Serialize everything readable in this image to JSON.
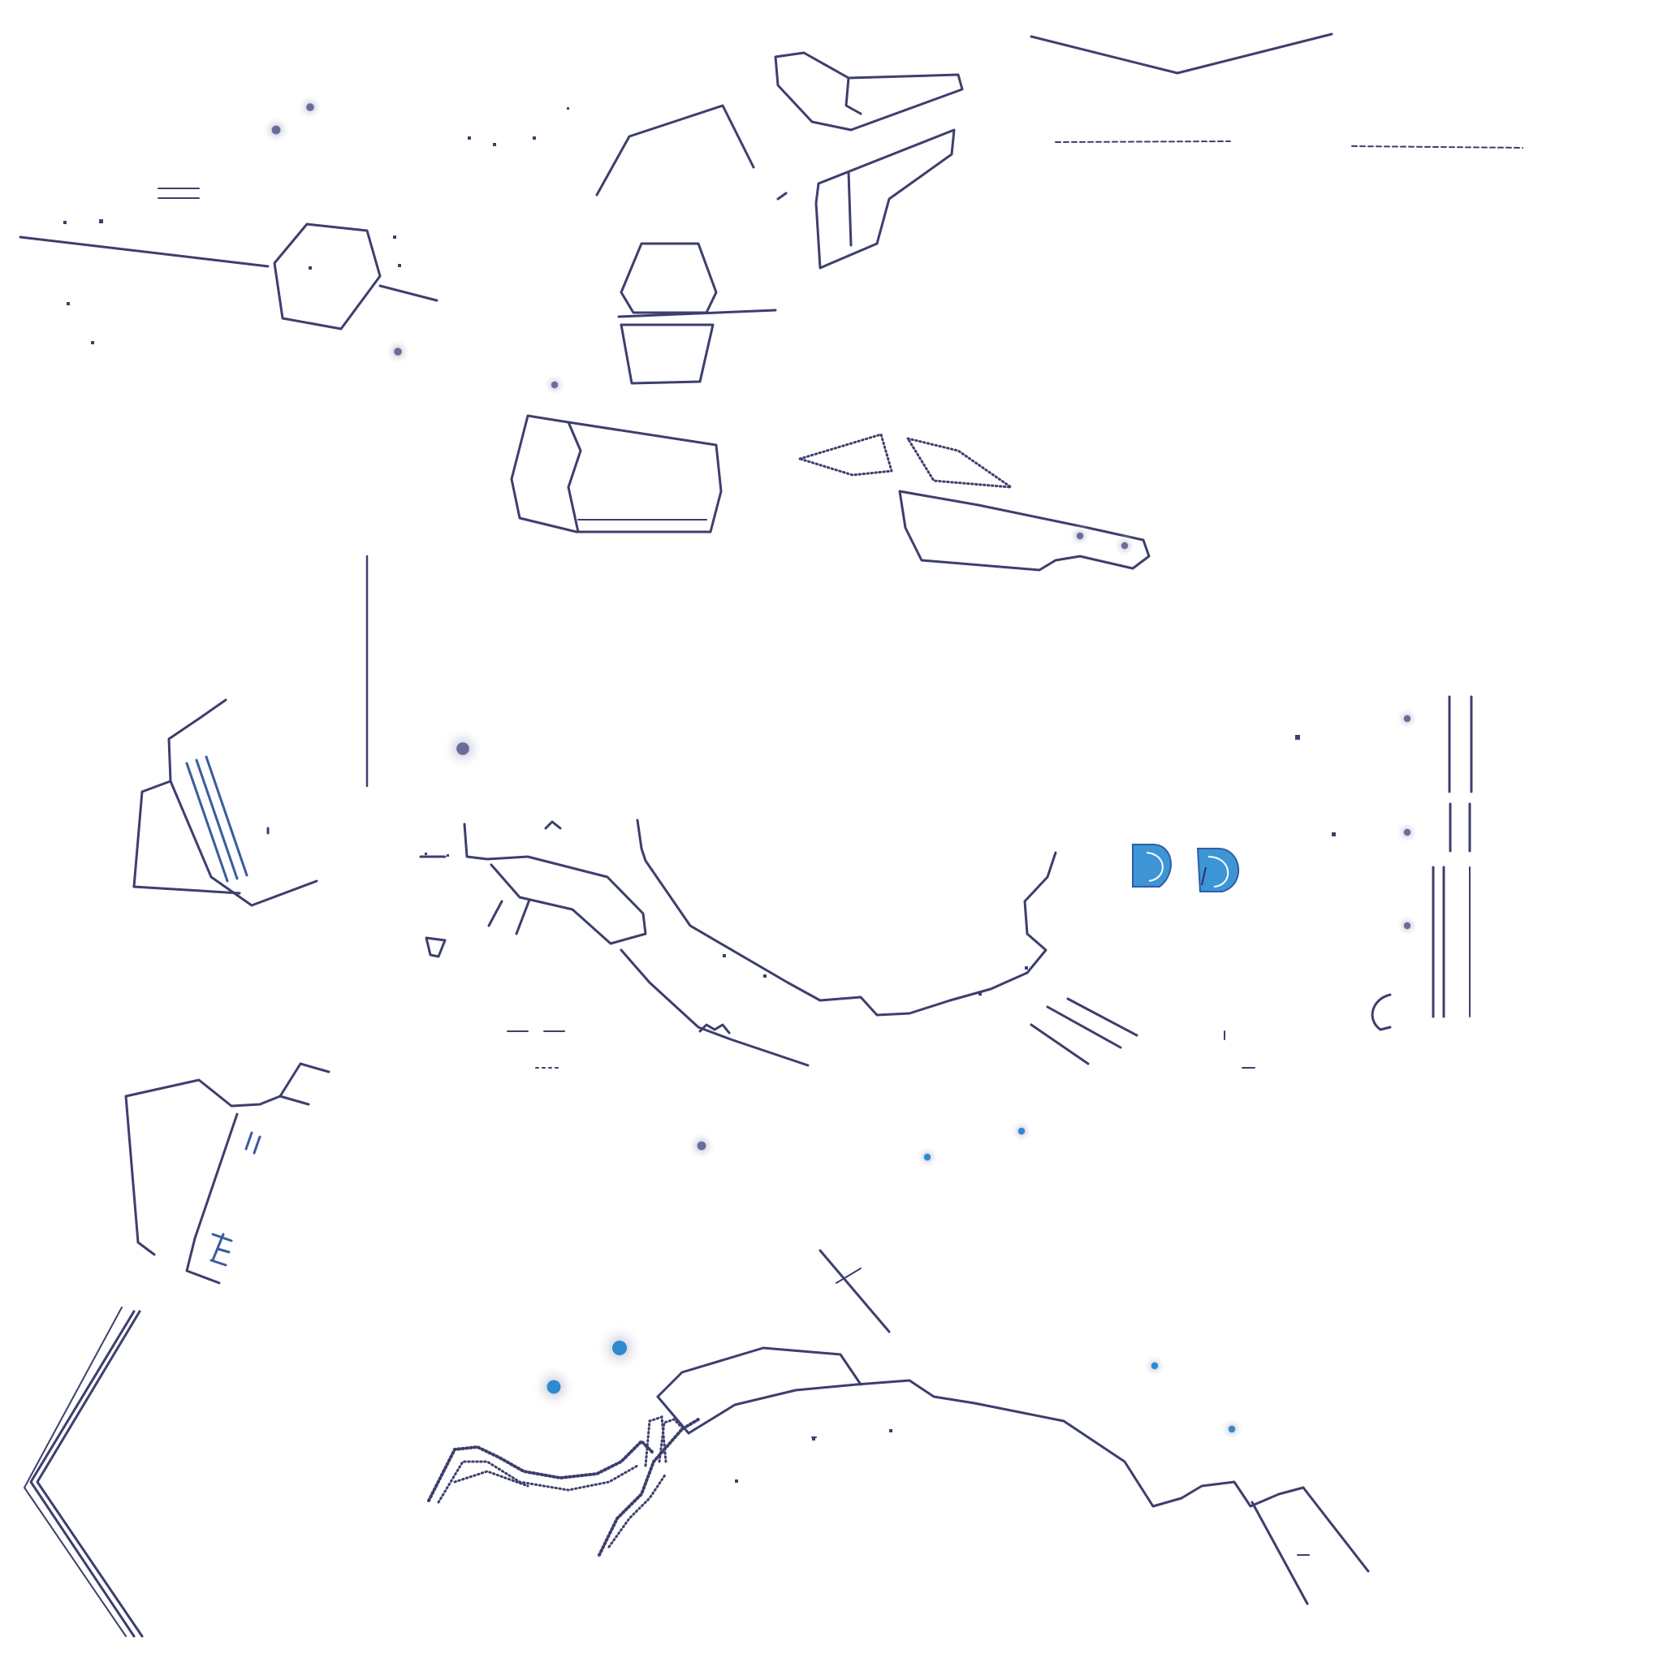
{
  "colors": {
    "background": "#ffffff",
    "ink": "#3c3f6e",
    "ink_dark": "#2e3160",
    "dot_dark": "#6a6c9a",
    "dot_blue": "#2f8ad0",
    "halo": "#b9bbd2",
    "fill_blue": "#3d95d6"
  }
}
